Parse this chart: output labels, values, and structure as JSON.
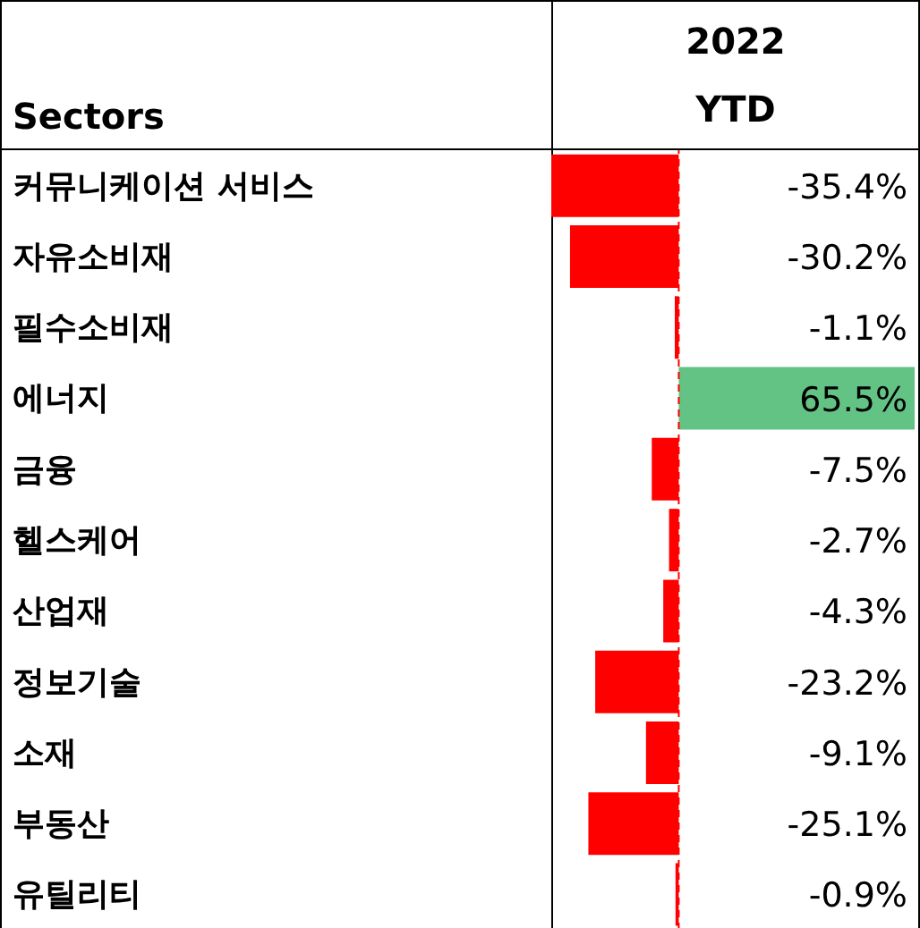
{
  "chart_data": {
    "type": "bar",
    "orientation": "horizontal",
    "title": "2022 YTD",
    "ylabel": "Sectors",
    "categories": [
      "커뮤니케이션 서비스",
      "자유소비재",
      "필수소비재",
      "에너지",
      "금융",
      "헬스케어",
      "산업재",
      "정보기술",
      "소재",
      "부동산",
      "유틸리티"
    ],
    "values": [
      -35.4,
      -30.2,
      -1.1,
      65.5,
      -7.5,
      -2.7,
      -4.3,
      -23.2,
      -9.1,
      -25.1,
      -0.9
    ],
    "value_labels": [
      "-35.4%",
      "-30.2%",
      "-1.1%",
      "65.5%",
      "-7.5%",
      "-2.7%",
      "-4.3%",
      "-23.2%",
      "-9.1%",
      "-25.1%",
      "-0.9%"
    ],
    "colors": [
      "#ff0000",
      "#ff0000",
      "#ff0000",
      "#63c384",
      "#ff0000",
      "#ff0000",
      "#ff0000",
      "#ff0000",
      "#ff0000",
      "#ff0000",
      "#ff0000"
    ],
    "ref_lines": [
      {
        "axis": "x",
        "value": 0,
        "color": "#ff0000",
        "line_style": "dashed"
      }
    ]
  }
}
